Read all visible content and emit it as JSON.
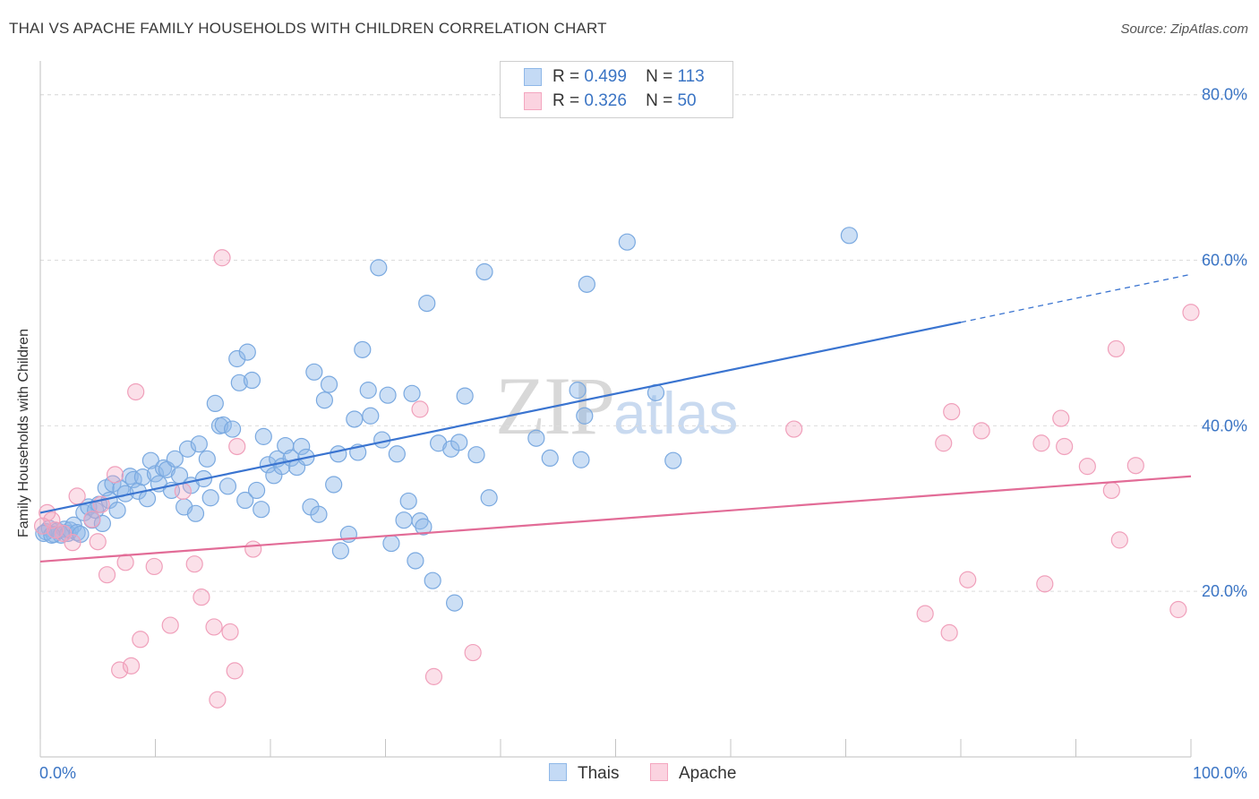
{
  "header": {
    "title": "THAI VS APACHE FAMILY HOUSEHOLDS WITH CHILDREN CORRELATION CHART",
    "source": "Source: ZipAtlas.com"
  },
  "watermark": {
    "zip": "ZIP",
    "atlas": "atlas"
  },
  "legend_stats": [
    {
      "r_label": "R =",
      "r_value": "0.499",
      "n_label": "N =",
      "n_value": "113",
      "color": "#8fb8e8"
    },
    {
      "r_label": "R =",
      "r_value": "0.326",
      "n_label": "N =",
      "n_value": "50",
      "color": "#f4a6bf"
    }
  ],
  "legend_bottom": [
    {
      "label": "Thais",
      "color": "#8fb8e8"
    },
    {
      "label": "Apache",
      "color": "#f4a6bf"
    }
  ],
  "chart_data": {
    "type": "scatter",
    "title": "THAI VS APACHE FAMILY HOUSEHOLDS WITH CHILDREN CORRELATION CHART",
    "ylabel": "Family Households with Children",
    "xlabel": "",
    "x_tick_labels": [
      "0.0%",
      "100.0%"
    ],
    "y_tick_labels": [
      "20.0%",
      "40.0%",
      "60.0%",
      "80.0%"
    ],
    "y_ticks": [
      20,
      40,
      60,
      80
    ],
    "xlim": [
      0,
      100
    ],
    "ylim": [
      0,
      83
    ],
    "grid": true,
    "series": [
      {
        "name": "Thais",
        "color": "#3a74d0",
        "fill": "rgba(143,184,232,0.45)",
        "trend": {
          "x0": 0,
          "y0": 29.5,
          "x1": 80,
          "y1": 52.5,
          "dash_to_x": 100,
          "dash_to_y": 58.3
        },
        "points": [
          [
            0.5,
            27.2
          ],
          [
            0.8,
            27.6
          ],
          [
            1.2,
            26.9
          ],
          [
            1.5,
            27.3
          ],
          [
            1.8,
            26.8
          ],
          [
            2.1,
            27.5
          ],
          [
            2.4,
            27.0
          ],
          [
            2.6,
            27.4
          ],
          [
            2.9,
            28.0
          ],
          [
            3.2,
            27.1
          ],
          [
            3.5,
            26.9
          ],
          [
            3.8,
            29.5
          ],
          [
            4.2,
            30.2
          ],
          [
            4.5,
            28.6
          ],
          [
            4.8,
            29.8
          ],
          [
            5.1,
            30.5
          ],
          [
            5.4,
            28.2
          ],
          [
            5.7,
            32.5
          ],
          [
            6.0,
            31.0
          ],
          [
            6.3,
            33.0
          ],
          [
            6.7,
            29.8
          ],
          [
            7.0,
            32.4
          ],
          [
            7.4,
            31.8
          ],
          [
            7.8,
            33.9
          ],
          [
            8.1,
            33.5
          ],
          [
            8.5,
            32.1
          ],
          [
            8.9,
            33.8
          ],
          [
            9.3,
            31.2
          ],
          [
            9.6,
            35.8
          ],
          [
            10.0,
            34.2
          ],
          [
            10.3,
            33.0
          ],
          [
            10.7,
            34.9
          ],
          [
            11.0,
            34.7
          ],
          [
            11.4,
            32.2
          ],
          [
            11.7,
            36.0
          ],
          [
            12.1,
            34.0
          ],
          [
            12.5,
            30.2
          ],
          [
            12.8,
            37.2
          ],
          [
            13.1,
            32.8
          ],
          [
            13.5,
            29.4
          ],
          [
            13.8,
            37.8
          ],
          [
            14.2,
            33.6
          ],
          [
            14.5,
            36.0
          ],
          [
            14.8,
            31.3
          ],
          [
            15.2,
            42.7
          ],
          [
            15.6,
            40.0
          ],
          [
            15.9,
            40.1
          ],
          [
            16.3,
            32.7
          ],
          [
            16.7,
            39.6
          ],
          [
            17.1,
            48.1
          ],
          [
            17.3,
            45.2
          ],
          [
            17.8,
            31.0
          ],
          [
            18.0,
            48.9
          ],
          [
            18.4,
            45.5
          ],
          [
            18.8,
            32.2
          ],
          [
            19.2,
            29.9
          ],
          [
            19.4,
            38.7
          ],
          [
            19.8,
            35.3
          ],
          [
            20.3,
            34.0
          ],
          [
            20.6,
            36.0
          ],
          [
            21.0,
            35.1
          ],
          [
            21.3,
            37.6
          ],
          [
            21.8,
            36.1
          ],
          [
            22.3,
            35.0
          ],
          [
            22.7,
            37.5
          ],
          [
            23.1,
            36.2
          ],
          [
            23.5,
            30.2
          ],
          [
            23.8,
            46.5
          ],
          [
            24.2,
            29.3
          ],
          [
            24.7,
            43.1
          ],
          [
            25.1,
            45.0
          ],
          [
            25.5,
            32.9
          ],
          [
            25.9,
            36.6
          ],
          [
            26.1,
            24.9
          ],
          [
            26.8,
            26.9
          ],
          [
            27.3,
            40.8
          ],
          [
            27.6,
            36.8
          ],
          [
            28.0,
            49.2
          ],
          [
            28.5,
            44.3
          ],
          [
            28.7,
            41.2
          ],
          [
            29.4,
            59.1
          ],
          [
            29.7,
            38.3
          ],
          [
            30.2,
            43.7
          ],
          [
            30.5,
            25.8
          ],
          [
            31.0,
            36.6
          ],
          [
            31.6,
            28.6
          ],
          [
            32.0,
            30.9
          ],
          [
            32.3,
            43.9
          ],
          [
            32.6,
            23.7
          ],
          [
            33.0,
            28.5
          ],
          [
            33.3,
            27.8
          ],
          [
            33.6,
            54.8
          ],
          [
            34.1,
            21.3
          ],
          [
            34.6,
            37.9
          ],
          [
            35.7,
            37.2
          ],
          [
            36.0,
            18.6
          ],
          [
            36.4,
            38.0
          ],
          [
            36.9,
            43.6
          ],
          [
            37.9,
            36.5
          ],
          [
            38.6,
            58.6
          ],
          [
            39.0,
            31.3
          ],
          [
            43.1,
            38.5
          ],
          [
            44.3,
            36.1
          ],
          [
            46.7,
            44.3
          ],
          [
            47.0,
            35.9
          ],
          [
            47.3,
            41.2
          ],
          [
            47.5,
            57.1
          ],
          [
            51.0,
            62.2
          ],
          [
            53.5,
            44.0
          ],
          [
            55.0,
            35.8
          ],
          [
            70.3,
            63.0
          ],
          [
            0.3,
            27.0
          ],
          [
            1.0,
            26.8
          ]
        ]
      },
      {
        "name": "Apache",
        "color": "#e26c97",
        "fill": "rgba(244,166,191,0.35)",
        "trend": {
          "x0": 0,
          "y0": 23.6,
          "x1": 100,
          "y1": 33.9
        },
        "points": [
          [
            0.6,
            29.5
          ],
          [
            1.0,
            28.6
          ],
          [
            1.3,
            27.4
          ],
          [
            2.0,
            27.0
          ],
          [
            2.8,
            25.9
          ],
          [
            3.2,
            31.5
          ],
          [
            4.5,
            28.7
          ],
          [
            5.0,
            26.0
          ],
          [
            5.3,
            30.5
          ],
          [
            5.8,
            22.0
          ],
          [
            6.5,
            34.1
          ],
          [
            6.9,
            10.5
          ],
          [
            7.4,
            23.5
          ],
          [
            7.9,
            11.0
          ],
          [
            8.3,
            44.1
          ],
          [
            8.7,
            14.2
          ],
          [
            9.9,
            23.0
          ],
          [
            11.3,
            15.9
          ],
          [
            12.4,
            32.1
          ],
          [
            13.4,
            23.3
          ],
          [
            14.0,
            19.3
          ],
          [
            15.1,
            15.7
          ],
          [
            15.4,
            6.9
          ],
          [
            15.8,
            60.3
          ],
          [
            16.5,
            15.1
          ],
          [
            16.9,
            10.4
          ],
          [
            17.1,
            37.5
          ],
          [
            18.5,
            25.1
          ],
          [
            33.0,
            42.0
          ],
          [
            34.2,
            9.7
          ],
          [
            37.6,
            12.6
          ],
          [
            65.5,
            39.6
          ],
          [
            76.9,
            17.3
          ],
          [
            78.5,
            37.9
          ],
          [
            79.0,
            15.0
          ],
          [
            79.2,
            41.7
          ],
          [
            80.6,
            21.4
          ],
          [
            81.8,
            39.4
          ],
          [
            87.0,
            37.9
          ],
          [
            87.3,
            20.9
          ],
          [
            88.7,
            40.9
          ],
          [
            89.0,
            37.5
          ],
          [
            91.0,
            35.1
          ],
          [
            93.1,
            32.2
          ],
          [
            93.5,
            49.3
          ],
          [
            93.8,
            26.2
          ],
          [
            95.2,
            35.2
          ],
          [
            98.9,
            17.8
          ],
          [
            100.0,
            53.7
          ],
          [
            0.2,
            27.9
          ]
        ]
      }
    ]
  }
}
